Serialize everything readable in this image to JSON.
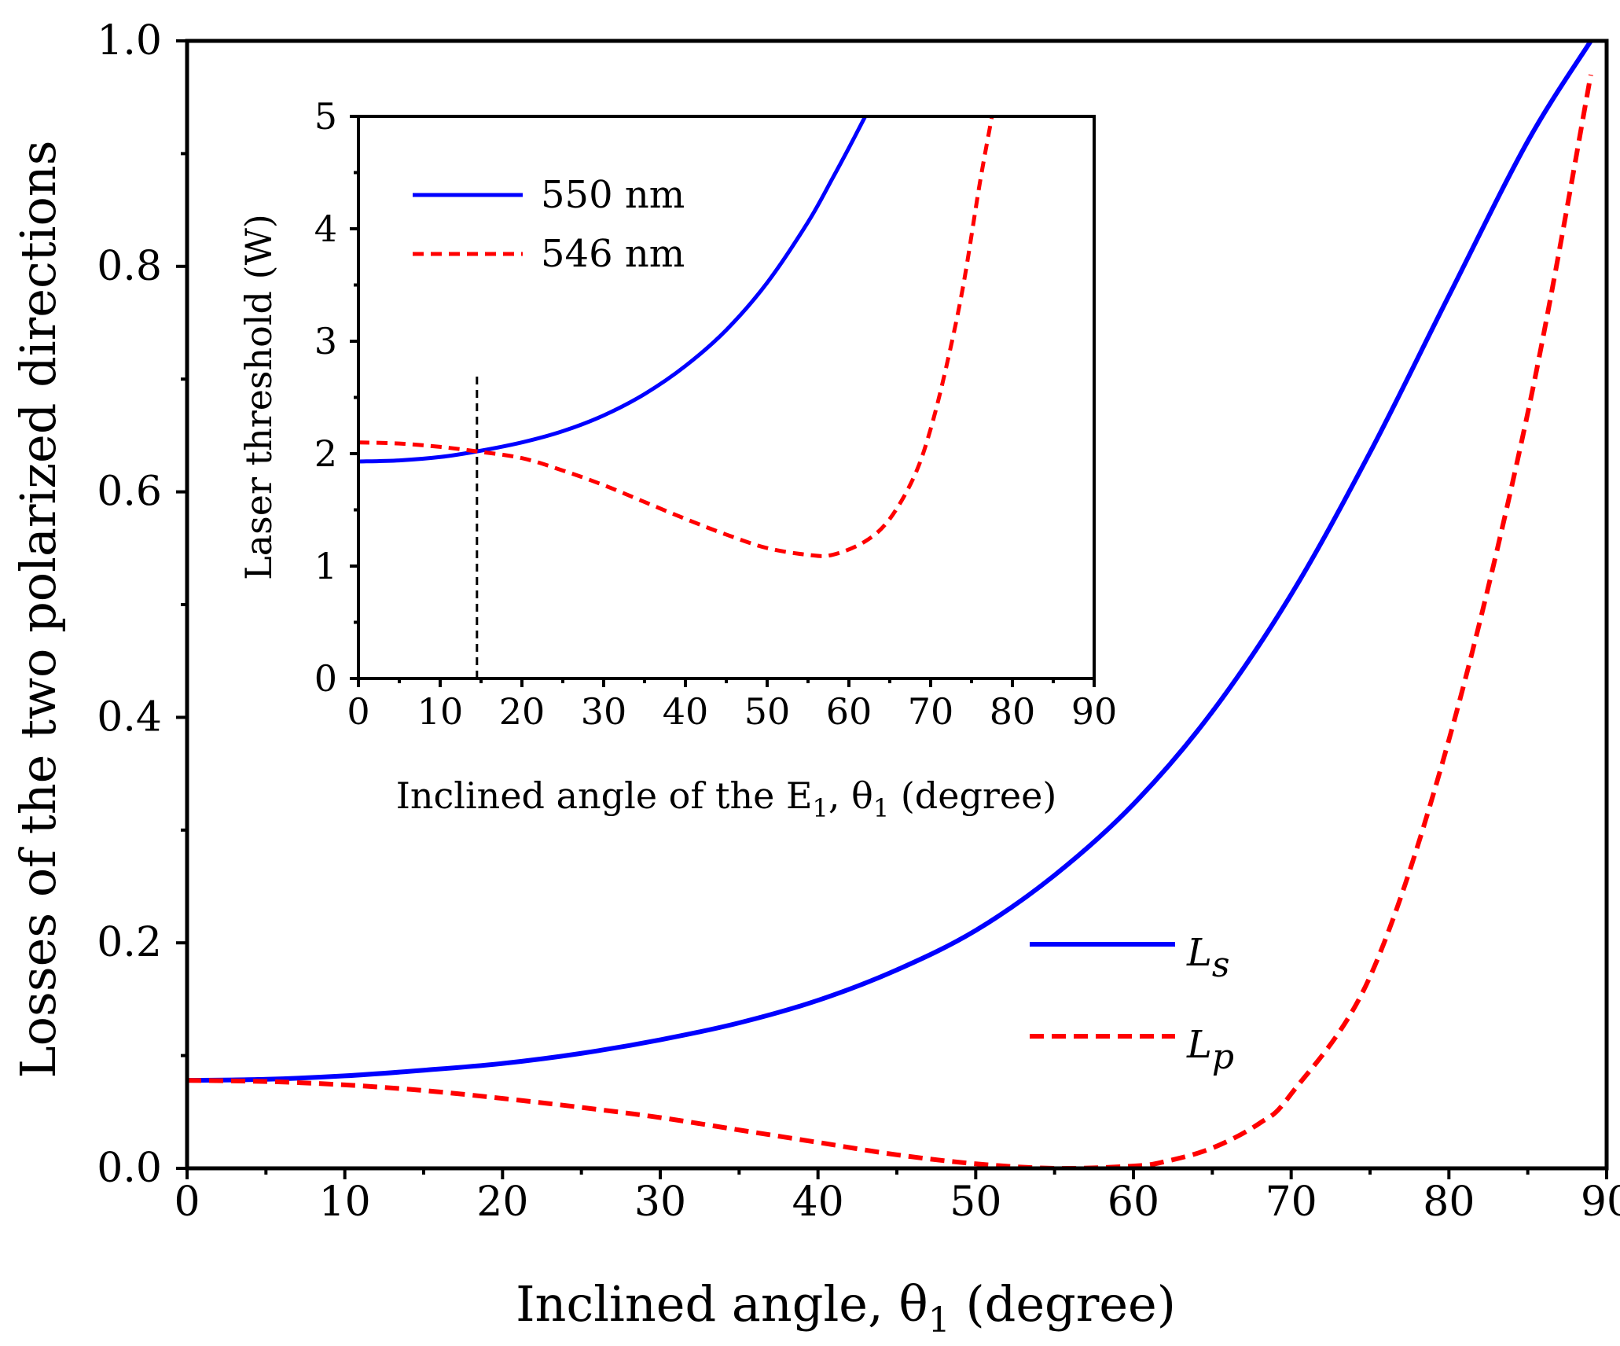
{
  "chart_data": [
    {
      "id": "main",
      "type": "line",
      "xlabel": "Inclined angle, θ",
      "xlabel_sub": "1",
      "xlabel_suffix": " (degree)",
      "ylabel": "Losses of the two polarized directions",
      "xlim": [
        0,
        90
      ],
      "ylim": [
        0,
        1.0
      ],
      "xticks": [
        0,
        10,
        20,
        30,
        40,
        50,
        60,
        70,
        80,
        90
      ],
      "yticks": [
        0.0,
        0.2,
        0.4,
        0.6,
        0.8,
        1.0
      ],
      "xtick_labels": [
        "0",
        "10",
        "20",
        "30",
        "40",
        "50",
        "60",
        "70",
        "80",
        "90"
      ],
      "ytick_labels": [
        "0.0",
        "0.2",
        "0.4",
        "0.6",
        "0.8",
        "1.0"
      ],
      "legend_position": "lower-right",
      "series": [
        {
          "name": "L",
          "name_sub": "s",
          "style": "solid",
          "color": "#0000ff",
          "x": [
            0,
            5,
            10,
            15,
            20,
            25,
            30,
            35,
            40,
            45,
            50,
            55,
            60,
            65,
            70,
            75,
            80,
            85,
            89
          ],
          "y": [
            0.078,
            0.079,
            0.082,
            0.087,
            0.093,
            0.102,
            0.114,
            0.129,
            0.149,
            0.176,
            0.211,
            0.26,
            0.323,
            0.405,
            0.509,
            0.635,
            0.774,
            0.911,
            1.0
          ]
        },
        {
          "name": "L",
          "name_sub": "p",
          "style": "dashed",
          "color": "#ff0000",
          "x": [
            0,
            5,
            10,
            15,
            20,
            25,
            30,
            35,
            40,
            45,
            50,
            55,
            60,
            62,
            65,
            68,
            70,
            75,
            80,
            85,
            89
          ],
          "y": [
            0.078,
            0.077,
            0.074,
            0.069,
            0.062,
            0.054,
            0.045,
            0.034,
            0.023,
            0.012,
            0.004,
            0.0,
            0.002,
            0.006,
            0.018,
            0.04,
            0.066,
            0.17,
            0.38,
            0.67,
            0.97
          ]
        }
      ]
    },
    {
      "id": "inset",
      "type": "line",
      "xlabel": "Inclined angle of the E",
      "xlabel_sub1": "1",
      "xlabel_mid": ", θ",
      "xlabel_sub2": "1",
      "xlabel_suffix": " (degree)",
      "ylabel": "Laser threshold (W)",
      "xlim": [
        0,
        90
      ],
      "ylim": [
        0,
        5
      ],
      "xticks": [
        0,
        10,
        20,
        30,
        40,
        50,
        60,
        70,
        80,
        90
      ],
      "yticks": [
        0,
        1,
        2,
        3,
        4,
        5
      ],
      "xtick_labels": [
        "0",
        "10",
        "20",
        "30",
        "40",
        "50",
        "60",
        "70",
        "80",
        "90"
      ],
      "ytick_labels": [
        "0",
        "1",
        "2",
        "3",
        "4",
        "5"
      ],
      "legend_position": "top-left",
      "reference_line": {
        "x": 14.5,
        "style": "dashed",
        "color": "#000000"
      },
      "series": [
        {
          "name": "550 nm",
          "style": "solid",
          "color": "#0000ff",
          "x": [
            0,
            5,
            10,
            14.5,
            20,
            25,
            30,
            35,
            40,
            45,
            50,
            55,
            58,
            60,
            62
          ],
          "y": [
            1.93,
            1.94,
            1.97,
            2.02,
            2.1,
            2.2,
            2.34,
            2.53,
            2.78,
            3.1,
            3.52,
            4.06,
            4.45,
            4.72,
            5.0
          ]
        },
        {
          "name": "546 nm",
          "style": "dashed",
          "color": "#ff0000",
          "x": [
            0,
            5,
            10,
            14.5,
            20,
            25,
            30,
            35,
            40,
            45,
            50,
            55,
            58,
            62,
            65,
            68,
            70,
            72,
            74,
            76,
            77.5
          ],
          "y": [
            2.1,
            2.09,
            2.06,
            2.02,
            1.96,
            1.85,
            1.72,
            1.57,
            1.42,
            1.28,
            1.16,
            1.1,
            1.1,
            1.22,
            1.42,
            1.8,
            2.22,
            2.8,
            3.5,
            4.4,
            5.0
          ]
        }
      ]
    }
  ]
}
